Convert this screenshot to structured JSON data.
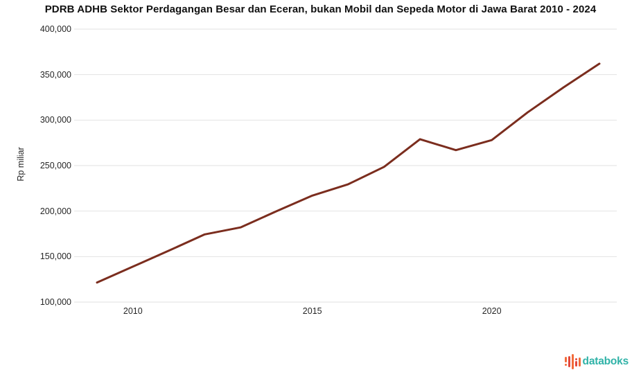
{
  "chart_data": {
    "type": "line",
    "title": "PDRB ADHB Sektor Perdagangan Besar dan Eceran, bukan Mobil dan Sepeda Motor di Jawa Barat 2010 - 2024",
    "ylabel": "Rp miliar",
    "xlabel": "",
    "x": [
      2010,
      2011,
      2012,
      2013,
      2014,
      2015,
      2016,
      2017,
      2018,
      2019,
      2020,
      2021,
      2022,
      2023,
      2024
    ],
    "values": [
      121500,
      139000,
      156500,
      174400,
      182100,
      199800,
      217000,
      229500,
      248600,
      279000,
      267000,
      278000,
      308500,
      336000,
      362000
    ],
    "series_name": "PDRB ADHB Sektor Perdagangan Besar dan Eceran Jawa Barat",
    "ylim": [
      100000,
      400000
    ],
    "ytick_step": 50000,
    "yticks": [
      {
        "value": 100000,
        "label": "100,000"
      },
      {
        "value": 150000,
        "label": "150,000"
      },
      {
        "value": 200000,
        "label": "200,000"
      },
      {
        "value": 250000,
        "label": "250,000"
      },
      {
        "value": 300000,
        "label": "300,000"
      },
      {
        "value": 350000,
        "label": "350,000"
      },
      {
        "value": 400000,
        "label": "400,000"
      }
    ],
    "xticks": [
      {
        "label": "2010",
        "index": 1
      },
      {
        "label": "2015",
        "index": 6
      },
      {
        "label": "2020",
        "index": 11
      }
    ],
    "grid": true,
    "legend_position": "none",
    "line_color": "#7B2D1E",
    "grid_color": "#E2E2E2"
  },
  "branding": {
    "logo_text": "databoks",
    "logo_text_color": "#2FB2A7",
    "logo_icon": "equalizer-bars-icon",
    "logo_icon_bars": [
      {
        "h": 8,
        "color": "#F26B3A",
        "dot": "below"
      },
      {
        "h": 16,
        "color": "#E2473C",
        "dot": null
      },
      {
        "h": 22,
        "color": "#F26B3A",
        "dot": null
      },
      {
        "h": 8,
        "color": "#E2473C",
        "dot": "above"
      },
      {
        "h": 13,
        "color": "#F26B3A",
        "dot": null
      }
    ]
  }
}
